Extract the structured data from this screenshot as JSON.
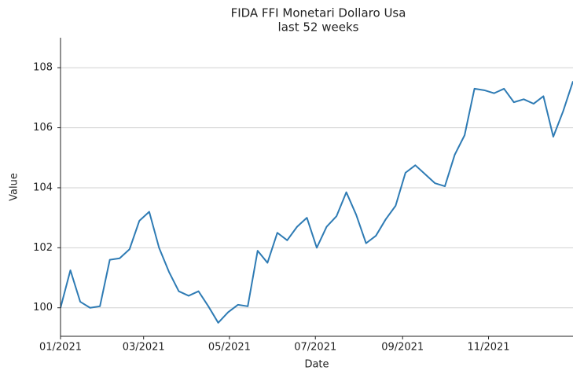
{
  "chart_data": {
    "type": "line",
    "title": "FIDA FFI Monetari Dollaro Usa",
    "subtitle": "last 52 weeks",
    "x_label": "Date",
    "y_label": "Value",
    "series": [
      {
        "name": "FIDA FFI Monetari Dollaro Usa",
        "color": "#2e7bb4",
        "values": [
          100.0,
          101.25,
          100.2,
          100.0,
          100.05,
          101.6,
          101.65,
          101.95,
          102.9,
          103.2,
          102.0,
          101.2,
          100.55,
          100.4,
          100.55,
          100.05,
          99.5,
          99.85,
          100.1,
          100.05,
          101.9,
          101.5,
          102.5,
          102.25,
          102.7,
          103.0,
          102.0,
          102.7,
          103.05,
          103.85,
          103.1,
          102.15,
          102.4,
          102.95,
          103.4,
          104.5,
          104.75,
          104.45,
          104.15,
          104.05,
          105.1,
          105.75,
          107.3,
          107.25,
          107.15,
          107.3,
          106.85,
          106.95,
          106.8,
          107.05,
          105.7,
          106.55,
          107.55
        ]
      }
    ],
    "xlim": [
      0,
      52
    ],
    "xticks": [
      {
        "value": 0,
        "label": "01/2021"
      },
      {
        "value": 8.43,
        "label": "03/2021"
      },
      {
        "value": 17.14,
        "label": "05/2021"
      },
      {
        "value": 25.86,
        "label": "07/2021"
      },
      {
        "value": 34.71,
        "label": "09/2021"
      },
      {
        "value": 43.43,
        "label": "11/2021"
      }
    ],
    "ylim": [
      99.05,
      109
    ],
    "yticks": [
      100,
      102,
      104,
      106,
      108
    ],
    "grid": true
  }
}
